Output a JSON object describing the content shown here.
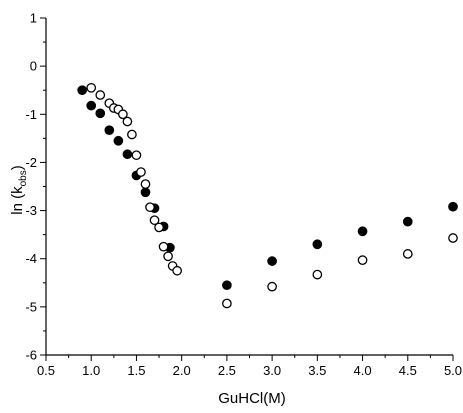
{
  "chart_data": {
    "type": "scatter",
    "xlabel": "GuHCl(M)",
    "ylabel": "ln (k_obs)",
    "ylabel_main": "ln (k",
    "ylabel_sub": "obs",
    "ylabel_close": ")",
    "xlim": [
      0.5,
      5.0
    ],
    "ylim": [
      -6,
      1
    ],
    "xticks": [
      0.5,
      1.0,
      1.5,
      2.0,
      2.5,
      3.0,
      3.5,
      4.0,
      4.5,
      5.0
    ],
    "xtick_labels": [
      "0.5",
      "1.0",
      "1.5",
      "2.0",
      "2.5",
      "3.0",
      "3.5",
      "4.0",
      "4.5",
      "5.0"
    ],
    "yticks": [
      -6,
      -5,
      -4,
      -3,
      -2,
      -1,
      0,
      1
    ],
    "ytick_labels": [
      "-6",
      "-5",
      "-4",
      "-3",
      "-2",
      "-1",
      "0",
      "1"
    ],
    "grid": false,
    "series": [
      {
        "marker": "filled-circle",
        "color": "#000000",
        "points": [
          {
            "x": 0.9,
            "y": -0.5
          },
          {
            "x": 1.0,
            "y": -0.82
          },
          {
            "x": 1.1,
            "y": -0.98
          },
          {
            "x": 1.2,
            "y": -1.33
          },
          {
            "x": 1.3,
            "y": -1.55
          },
          {
            "x": 1.4,
            "y": -1.83
          },
          {
            "x": 1.5,
            "y": -2.27
          },
          {
            "x": 1.6,
            "y": -2.62
          },
          {
            "x": 1.7,
            "y": -2.95
          },
          {
            "x": 1.8,
            "y": -3.33
          },
          {
            "x": 1.87,
            "y": -3.77
          },
          {
            "x": 2.5,
            "y": -4.55
          },
          {
            "x": 3.0,
            "y": -4.05
          },
          {
            "x": 3.5,
            "y": -3.7
          },
          {
            "x": 4.0,
            "y": -3.43
          },
          {
            "x": 4.5,
            "y": -3.23
          },
          {
            "x": 5.0,
            "y": -2.92
          }
        ]
      },
      {
        "marker": "open-circle",
        "color": "#000000",
        "points": [
          {
            "x": 1.0,
            "y": -0.45
          },
          {
            "x": 1.1,
            "y": -0.6
          },
          {
            "x": 1.2,
            "y": -0.77
          },
          {
            "x": 1.25,
            "y": -0.87
          },
          {
            "x": 1.3,
            "y": -0.9
          },
          {
            "x": 1.35,
            "y": -1.0
          },
          {
            "x": 1.4,
            "y": -1.15
          },
          {
            "x": 1.45,
            "y": -1.42
          },
          {
            "x": 1.5,
            "y": -1.85
          },
          {
            "x": 1.55,
            "y": -2.2
          },
          {
            "x": 1.6,
            "y": -2.45
          },
          {
            "x": 1.65,
            "y": -2.93
          },
          {
            "x": 1.7,
            "y": -3.2
          },
          {
            "x": 1.75,
            "y": -3.35
          },
          {
            "x": 1.8,
            "y": -3.75
          },
          {
            "x": 1.85,
            "y": -3.95
          },
          {
            "x": 1.9,
            "y": -4.15
          },
          {
            "x": 1.95,
            "y": -4.25
          },
          {
            "x": 2.5,
            "y": -4.93
          },
          {
            "x": 3.0,
            "y": -4.58
          },
          {
            "x": 3.5,
            "y": -4.33
          },
          {
            "x": 4.0,
            "y": -4.03
          },
          {
            "x": 4.5,
            "y": -3.9
          },
          {
            "x": 5.0,
            "y": -3.57
          }
        ]
      }
    ]
  }
}
